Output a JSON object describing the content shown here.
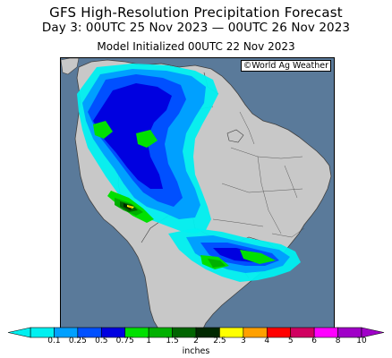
{
  "header": {
    "title": "GFS High-Resolution Precipitation Forecast",
    "valid_period": "Day 3: 00UTC 25 Nov 2023 — 00UTC 26 Nov 2023",
    "model_run": "Model Initialized 00UTC 22 Nov 2023"
  },
  "map": {
    "region": "South America",
    "credit": "©World Ag Weather",
    "colors": {
      "ocean": "#5a7a9a",
      "land": "#c8c8c8",
      "borders": "#404040"
    }
  },
  "legend": {
    "units": "inches",
    "bins": [
      {
        "label": "0.1",
        "color": "#00f0f0"
      },
      {
        "label": "0.25",
        "color": "#00a0ff"
      },
      {
        "label": "0.5",
        "color": "#0050ff"
      },
      {
        "label": "0.75",
        "color": "#0000e0"
      },
      {
        "label": "1",
        "color": "#00e000"
      },
      {
        "label": "1.5",
        "color": "#00b000"
      },
      {
        "label": "2",
        "color": "#006400"
      },
      {
        "label": "2.5",
        "color": "#002800"
      },
      {
        "label": "3",
        "color": "#ffff00"
      },
      {
        "label": "4",
        "color": "#ffa000"
      },
      {
        "label": "5",
        "color": "#ff0000"
      },
      {
        "label": "6",
        "color": "#d00060"
      },
      {
        "label": "8",
        "color": "#ff00ff"
      },
      {
        "label": "10",
        "color": "#a000c8"
      }
    ]
  }
}
